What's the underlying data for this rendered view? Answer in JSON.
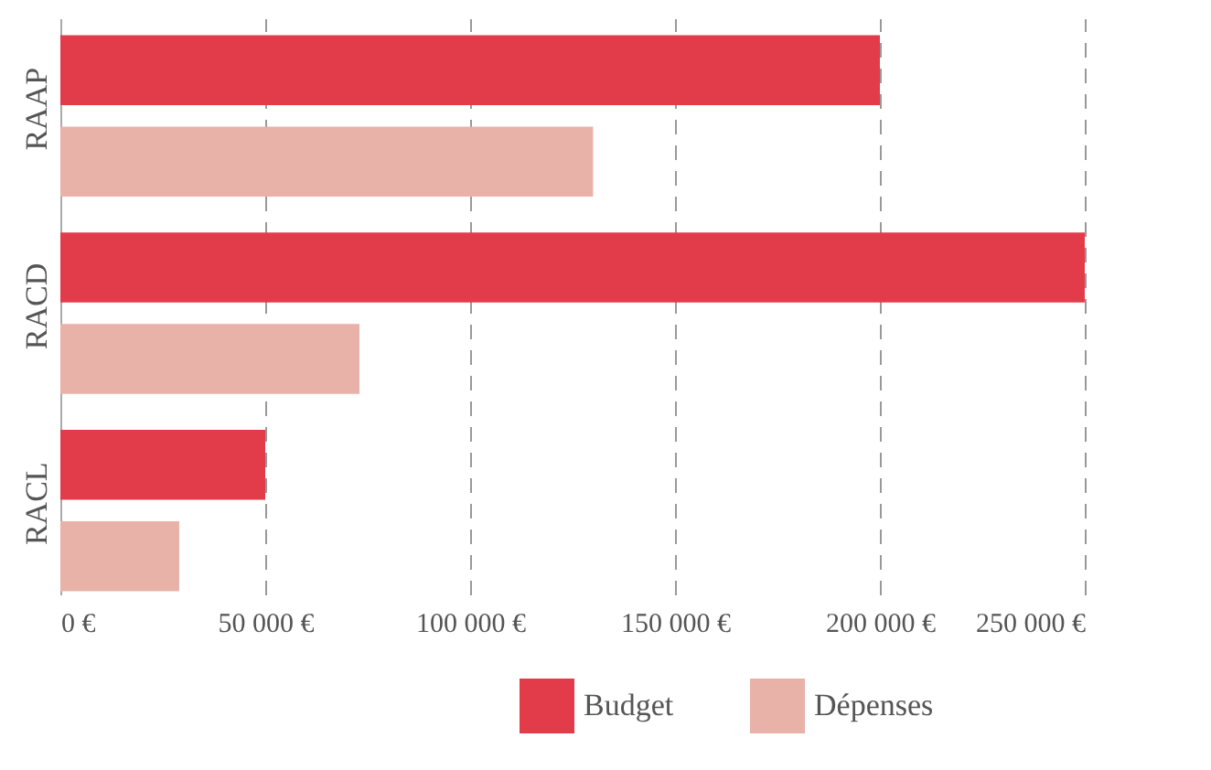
{
  "chart_data": {
    "type": "bar",
    "orientation": "horizontal",
    "categories": [
      "RAAP",
      "RACD",
      "RACL"
    ],
    "series": [
      {
        "name": "Budget",
        "color": "#e23c4b",
        "values": [
          200000,
          250000,
          50000
        ]
      },
      {
        "name": "Dépenses",
        "color": "#e8b2a9",
        "values": [
          130000,
          73000,
          29000
        ]
      }
    ],
    "xlim": [
      0,
      250000
    ],
    "xticks": [
      {
        "value": 0,
        "label": "0 €"
      },
      {
        "value": 50000,
        "label": "50 000 €"
      },
      {
        "value": 100000,
        "label": "100 000 €"
      },
      {
        "value": 150000,
        "label": "150 000 €"
      },
      {
        "value": 200000,
        "label": "200 000 €"
      },
      {
        "value": 250000,
        "label": "250 000 €"
      }
    ],
    "grid": "x",
    "legend": "bottom right"
  }
}
